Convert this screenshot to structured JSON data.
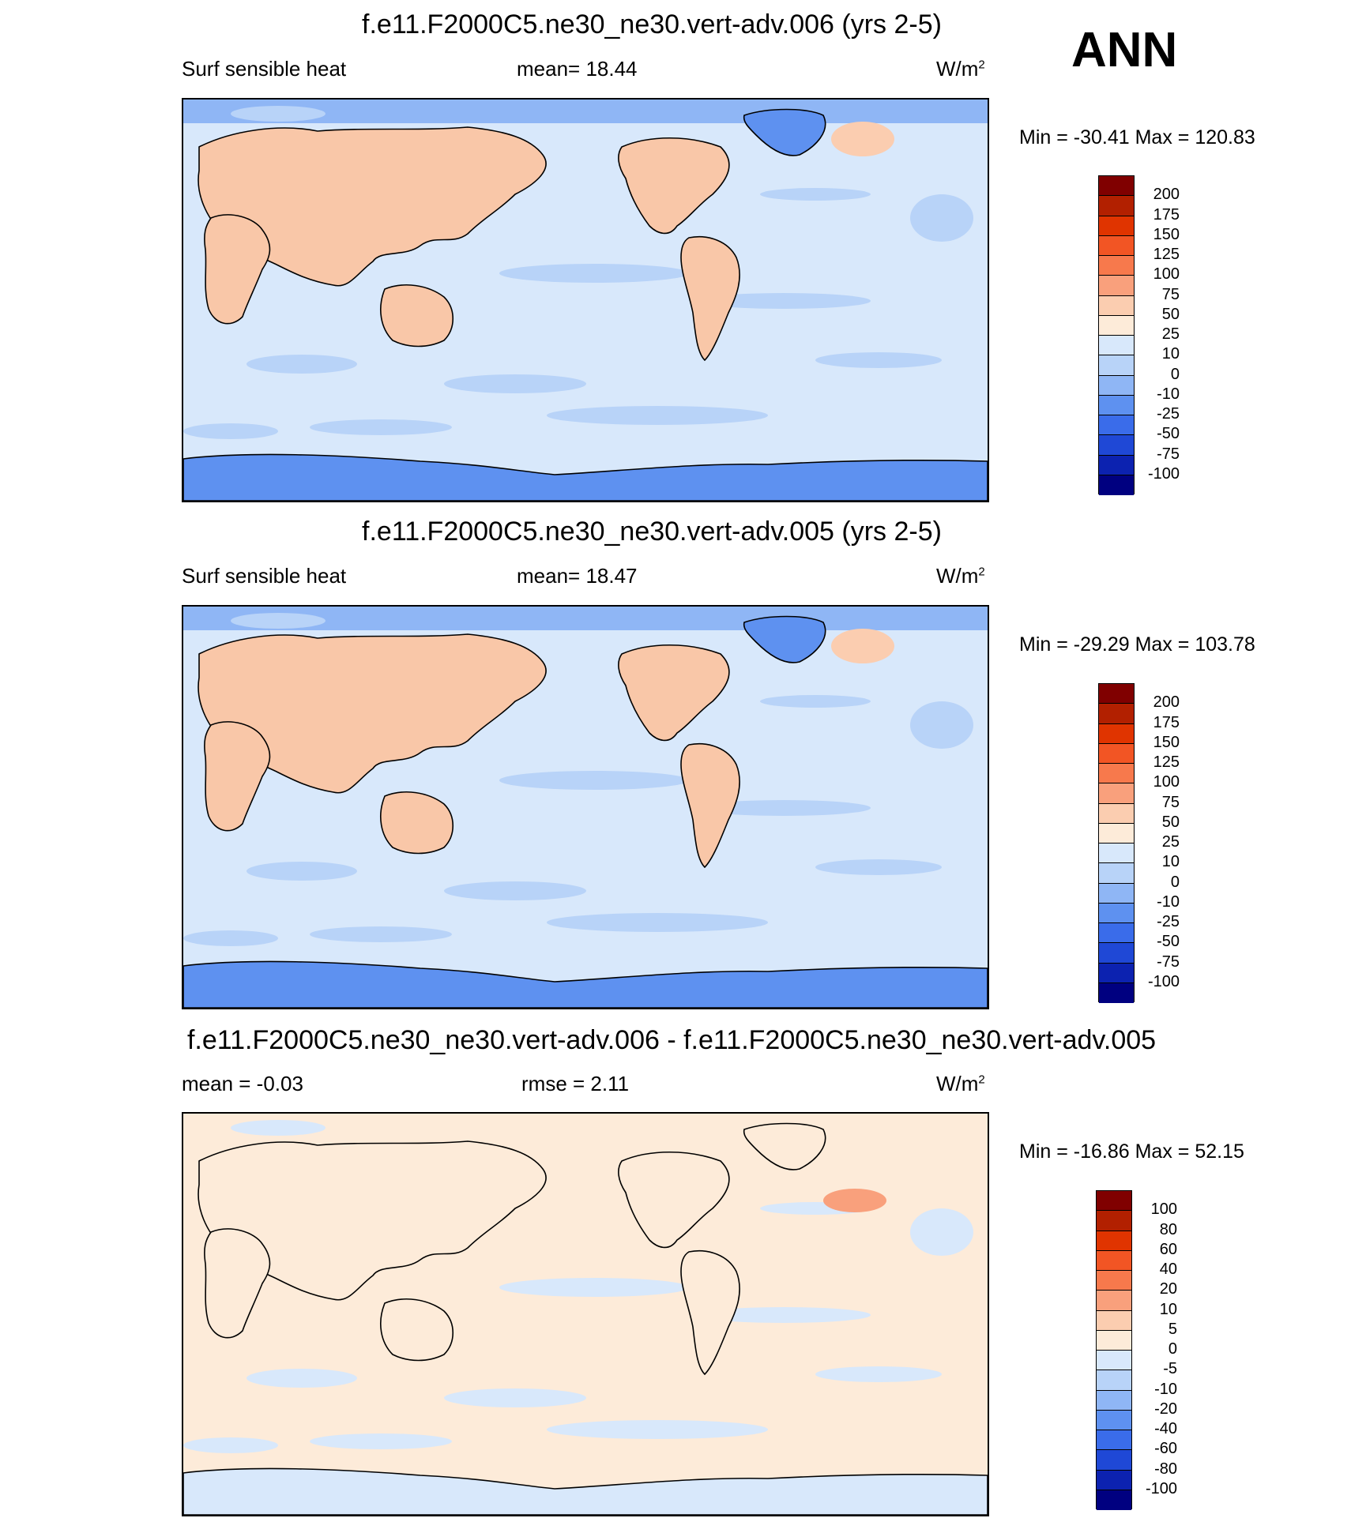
{
  "season": "ANN",
  "panels": [
    {
      "title": "f.e11.F2000C5.ne30_ne30.vert-adv.006 (yrs 2-5)",
      "left_label": "Surf sensible heat",
      "center_label": "mean=  18.44",
      "units": "W/m",
      "units_sup": "2",
      "minmax": "Min = -30.41 Max = 120.83",
      "colorbar": {
        "labels": [
          "200",
          "175",
          "150",
          "125",
          "100",
          "75",
          "50",
          "25",
          "10",
          "0",
          "-10",
          "-25",
          "-50",
          "-75",
          "-100"
        ],
        "colors": [
          "#800000",
          "#b22000",
          "#e03400",
          "#f25524",
          "#f7794c",
          "#f9a07c",
          "#fbcdb0",
          "#fdebd9",
          "#d8e8fb",
          "#b8d3f8",
          "#8fb6f5",
          "#5e91f0",
          "#3a6cea",
          "#1f48d6",
          "#0c22b0",
          "#000080"
        ]
      }
    },
    {
      "title": "f.e11.F2000C5.ne30_ne30.vert-adv.005 (yrs 2-5)",
      "left_label": "Surf sensible heat",
      "center_label": "mean=  18.47",
      "units": "W/m",
      "units_sup": "2",
      "minmax": "Min = -29.29 Max = 103.78",
      "colorbar": {
        "labels": [
          "200",
          "175",
          "150",
          "125",
          "100",
          "75",
          "50",
          "25",
          "10",
          "0",
          "-10",
          "-25",
          "-50",
          "-75",
          "-100"
        ],
        "colors": [
          "#800000",
          "#b22000",
          "#e03400",
          "#f25524",
          "#f7794c",
          "#f9a07c",
          "#fbcdb0",
          "#fdebd9",
          "#d8e8fb",
          "#b8d3f8",
          "#8fb6f5",
          "#5e91f0",
          "#3a6cea",
          "#1f48d6",
          "#0c22b0",
          "#000080"
        ]
      }
    },
    {
      "title": "f.e11.F2000C5.ne30_ne30.vert-adv.006 - f.e11.F2000C5.ne30_ne30.vert-adv.005",
      "left_label": "mean =  -0.03",
      "center_label": "rmse =   2.11",
      "units": "W/m",
      "units_sup": "2",
      "minmax": "Min = -16.86 Max =  52.15",
      "colorbar": {
        "labels": [
          "100",
          "80",
          "60",
          "40",
          "20",
          "10",
          "5",
          "0",
          "-5",
          "-10",
          "-20",
          "-40",
          "-60",
          "-80",
          "-100"
        ],
        "colors": [
          "#800000",
          "#b22000",
          "#e03400",
          "#f25524",
          "#f7794c",
          "#f9a07c",
          "#fbcdb0",
          "#fdebd9",
          "#d8e8fb",
          "#b8d3f8",
          "#8fb6f5",
          "#5e91f0",
          "#3a6cea",
          "#1f48d6",
          "#0c22b0",
          "#000080"
        ]
      }
    }
  ]
}
